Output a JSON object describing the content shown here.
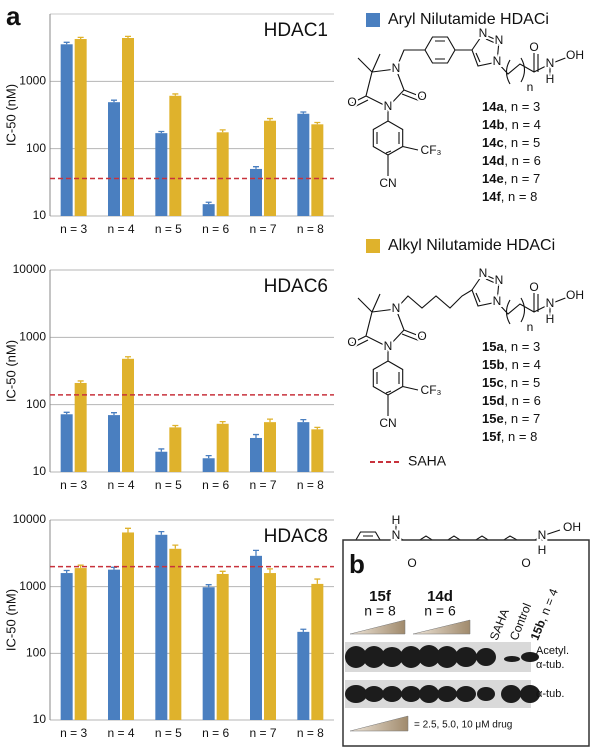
{
  "panel_a": "a",
  "chart_data": [
    {
      "type": "bar",
      "title": "HDAC1",
      "y_label": "IC-50 (nM)",
      "categories": [
        "n = 3",
        "n = 4",
        "n = 5",
        "n = 6",
        "n = 7",
        "n = 8"
      ],
      "series": [
        {
          "color": "#4a7fc0",
          "values": [
            3550,
            490,
            170,
            15,
            50,
            330
          ],
          "errors": [
            250,
            35,
            10,
            1,
            4,
            20
          ]
        },
        {
          "color": "#dfb22c",
          "values": [
            4250,
            4400,
            610,
            175,
            260,
            230
          ],
          "errors": [
            250,
            250,
            40,
            15,
            20,
            15
          ]
        }
      ],
      "log_scale": true,
      "ylim": [
        10,
        10000
      ],
      "yticks": [
        10,
        100,
        1000
      ],
      "grid": true,
      "reference": {
        "value": 36,
        "color": "#c8323c"
      }
    },
    {
      "type": "bar",
      "title": "HDAC6",
      "y_label": "IC-50 (nM)",
      "categories": [
        "n = 3",
        "n = 4",
        "n = 5",
        "n = 6",
        "n = 7",
        "n = 8"
      ],
      "series": [
        {
          "color": "#4a7fc0",
          "values": [
            72,
            70,
            20,
            16,
            32,
            55
          ],
          "errors": [
            5,
            6,
            2,
            1.5,
            4,
            5
          ]
        },
        {
          "color": "#dfb22c",
          "values": [
            210,
            480,
            46,
            52,
            55,
            43
          ],
          "errors": [
            15,
            35,
            3,
            4,
            6,
            3
          ]
        }
      ],
      "log_scale": true,
      "ylim": [
        10,
        10000
      ],
      "yticks": [
        10,
        100,
        1000,
        10000
      ],
      "grid": true,
      "reference": {
        "value": 140,
        "color": "#c8323c"
      }
    },
    {
      "type": "bar",
      "title": "HDAC8",
      "y_label": "IC-50 (nM)",
      "categories": [
        "n = 3",
        "n = 4",
        "n = 5",
        "n = 6",
        "n = 7",
        "n = 8"
      ],
      "series": [
        {
          "color": "#4a7fc0",
          "values": [
            1600,
            1800,
            6000,
            980,
            2900,
            210
          ],
          "errors": [
            150,
            150,
            700,
            90,
            600,
            20
          ]
        },
        {
          "color": "#dfb22c",
          "values": [
            1900,
            6500,
            3700,
            1550,
            1600,
            1100
          ],
          "errors": [
            200,
            1000,
            500,
            150,
            250,
            200
          ]
        }
      ],
      "log_scale": true,
      "ylim": [
        10,
        10000
      ],
      "yticks": [
        10,
        100,
        1000,
        10000
      ],
      "grid": true,
      "reference": {
        "value": 2000,
        "color": "#c8323c"
      }
    }
  ],
  "legend": [
    {
      "name": "Aryl Nilutamide HDACi",
      "color": "#4a7fc0"
    },
    {
      "name": "Alkyl Nilutamide HDACi",
      "color": "#dfb22c"
    },
    {
      "name": "SAHA",
      "color": "#c8323c"
    }
  ],
  "structures": [
    {
      "atoms": [
        "O",
        "N",
        "O",
        "N",
        "N",
        "N",
        "N",
        "O",
        "N",
        "H",
        "OH",
        "n",
        "CF₃",
        "CN"
      ],
      "compounds": [
        {
          "id": "14a",
          "text": ", n = 3"
        },
        {
          "id": "14b",
          "text": ", n = 4"
        },
        {
          "id": "14c",
          "text": ", n = 5"
        },
        {
          "id": "14d",
          "text": ", n = 6"
        },
        {
          "id": "14e",
          "text": ", n = 7"
        },
        {
          "id": "14f",
          "text": ", n = 8"
        }
      ]
    },
    {
      "atoms": [
        "O",
        "N",
        "O",
        "N",
        "N",
        "N",
        "N",
        "O",
        "N",
        "H",
        "OH",
        "n",
        "CF₃",
        "CN"
      ],
      "compounds": [
        {
          "id": "15a",
          "text": ", n = 3"
        },
        {
          "id": "15b",
          "text": ", n = 4"
        },
        {
          "id": "15c",
          "text": ", n = 5"
        },
        {
          "id": "15d",
          "text": ", n = 6"
        },
        {
          "id": "15e",
          "text": ", n = 7"
        },
        {
          "id": "15f",
          "text": ", n = 8"
        }
      ]
    }
  ],
  "saha_structure": {
    "atoms": [
      "H",
      "N",
      "O",
      "O",
      "N",
      "H",
      "OH"
    ]
  },
  "blot": {
    "label": "b",
    "groups": [
      {
        "id": "15f",
        "text": "n = 8"
      },
      {
        "id": "14d",
        "text": "n = 6"
      }
    ],
    "lanes": [
      "SAHA",
      "Control"
    ],
    "last_lane": {
      "id": "15b",
      "text": ", n = 4"
    },
    "rows": [
      [
        "Acetyl.",
        "α-tub."
      ],
      [
        "α-tub."
      ]
    ],
    "dose_note": "= 2.5, 5.0, 10 μM drug"
  }
}
